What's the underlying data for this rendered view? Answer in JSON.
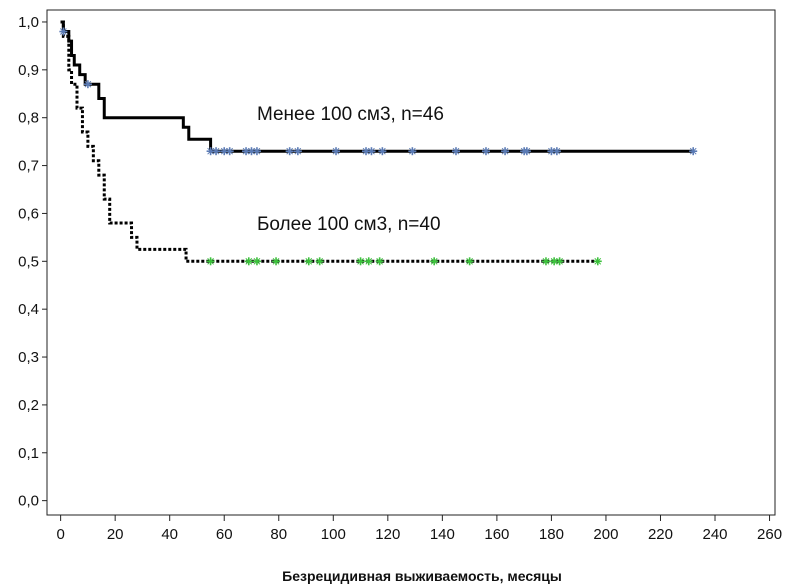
{
  "chart_data": {
    "type": "line",
    "subtype": "kaplan-meier",
    "title": "",
    "xlabel": "Безрецидивная выживаемость, месяцы",
    "ylabel": "",
    "xlim": [
      -5,
      262
    ],
    "ylim": [
      -0.03,
      1.025
    ],
    "x_ticks": [
      0,
      20,
      40,
      60,
      80,
      100,
      120,
      140,
      160,
      180,
      200,
      220,
      240,
      260
    ],
    "y_ticks": [
      0.0,
      0.1,
      0.2,
      0.3,
      0.4,
      0.5,
      0.6,
      0.7,
      0.8,
      0.9,
      1.0
    ],
    "y_tick_labels": [
      "0,0",
      "0,1",
      "0,2",
      "0,3",
      "0,4",
      "0,5",
      "0,6",
      "0,7",
      "0,8",
      "0,9",
      "1,0"
    ],
    "grid": false,
    "series": [
      {
        "name": "Менее 100 см3, n=46",
        "line_style": "solid",
        "color": "#000000",
        "censor_color": "#5b7bb5",
        "steps": [
          [
            0,
            1.0
          ],
          [
            1,
            0.98
          ],
          [
            3,
            0.96
          ],
          [
            4,
            0.93
          ],
          [
            5,
            0.91
          ],
          [
            7,
            0.89
          ],
          [
            9,
            0.87
          ],
          [
            14,
            0.84
          ],
          [
            16,
            0.8
          ],
          [
            45,
            0.78
          ],
          [
            47,
            0.755
          ],
          [
            55,
            0.73
          ],
          [
            232,
            0.73
          ]
        ],
        "censored": [
          [
            1,
            0.98
          ],
          [
            10,
            0.87
          ],
          [
            55,
            0.73
          ],
          [
            57,
            0.73
          ],
          [
            60,
            0.73
          ],
          [
            62,
            0.73
          ],
          [
            68,
            0.73
          ],
          [
            70,
            0.73
          ],
          [
            72,
            0.73
          ],
          [
            84,
            0.73
          ],
          [
            87,
            0.73
          ],
          [
            101,
            0.73
          ],
          [
            112,
            0.73
          ],
          [
            114,
            0.73
          ],
          [
            118,
            0.73
          ],
          [
            129,
            0.73
          ],
          [
            145,
            0.73
          ],
          [
            156,
            0.73
          ],
          [
            163,
            0.73
          ],
          [
            170,
            0.73
          ],
          [
            171,
            0.73
          ],
          [
            180,
            0.73
          ],
          [
            182,
            0.73
          ],
          [
            232,
            0.73
          ]
        ]
      },
      {
        "name": "Более 100 см3, n=40",
        "line_style": "dotted",
        "color": "#000000",
        "censor_color": "#3cc13c",
        "steps": [
          [
            0,
            1.0
          ],
          [
            1,
            0.97
          ],
          [
            3,
            0.9
          ],
          [
            4,
            0.87
          ],
          [
            6,
            0.82
          ],
          [
            8,
            0.77
          ],
          [
            10,
            0.74
          ],
          [
            12,
            0.71
          ],
          [
            14,
            0.68
          ],
          [
            16,
            0.63
          ],
          [
            18,
            0.58
          ],
          [
            26,
            0.55
          ],
          [
            28,
            0.525
          ],
          [
            46,
            0.5
          ],
          [
            197,
            0.5
          ]
        ],
        "censored": [
          [
            55,
            0.5
          ],
          [
            69,
            0.5
          ],
          [
            72,
            0.5
          ],
          [
            79,
            0.5
          ],
          [
            91,
            0.5
          ],
          [
            95,
            0.5
          ],
          [
            110,
            0.5
          ],
          [
            113,
            0.5
          ],
          [
            117,
            0.5
          ],
          [
            137,
            0.5
          ],
          [
            150,
            0.5
          ],
          [
            178,
            0.5
          ],
          [
            181,
            0.5
          ],
          [
            183,
            0.5
          ],
          [
            197,
            0.5
          ]
        ]
      }
    ],
    "annotations": [
      {
        "text": "Менее 100 см3, n=46",
        "x": 72,
        "y": 0.795
      },
      {
        "text": "Более 100 см3, n=40",
        "x": 72,
        "y": 0.565
      }
    ]
  }
}
